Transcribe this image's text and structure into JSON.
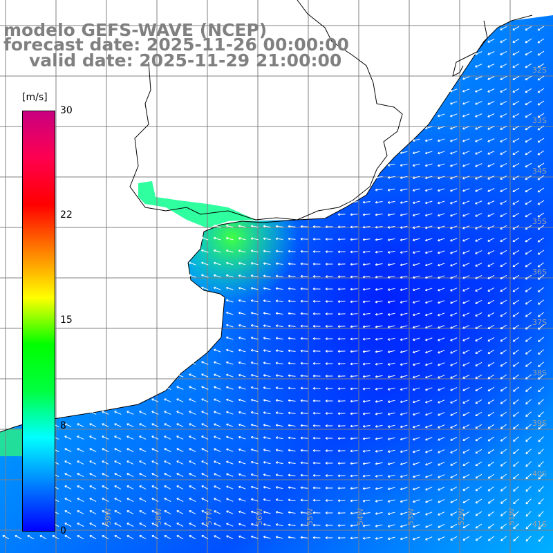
{
  "title": {
    "line1": "modelo GEFS-WAVE (NCEP)",
    "line2": "forecast date: 2025-11-26 00:00:00",
    "line3": "valid date: 2025-11-29 21:00:00"
  },
  "colorbar": {
    "unit": "[m/s]",
    "ticks": [
      "30",
      "22",
      "15",
      "8",
      "0"
    ],
    "tick_values": [
      30,
      22,
      15,
      8,
      0
    ],
    "colors": [
      "#0000ff",
      "#0080ff",
      "#00ffff",
      "#00ff40",
      "#00ff00",
      "#ffff00",
      "#ff8000",
      "#ff0000",
      "#ff0050",
      "#c80080"
    ]
  },
  "map": {
    "lon_labels": [
      "59W",
      "58W",
      "57W",
      "56W",
      "55W",
      "54W",
      "53W",
      "52W",
      "51W"
    ],
    "lat_labels": [
      "32S",
      "33S",
      "34S",
      "35S",
      "36S",
      "37S",
      "38S",
      "39S",
      "40S",
      "41S"
    ],
    "land_color": "#ffffff",
    "coast_color": "#000000",
    "grid_color": "#808080",
    "arrow_color": "#ffffff",
    "wind_direction": "mostly from the east/northeast near the coast, turning to northeast/southeast offshore"
  }
}
